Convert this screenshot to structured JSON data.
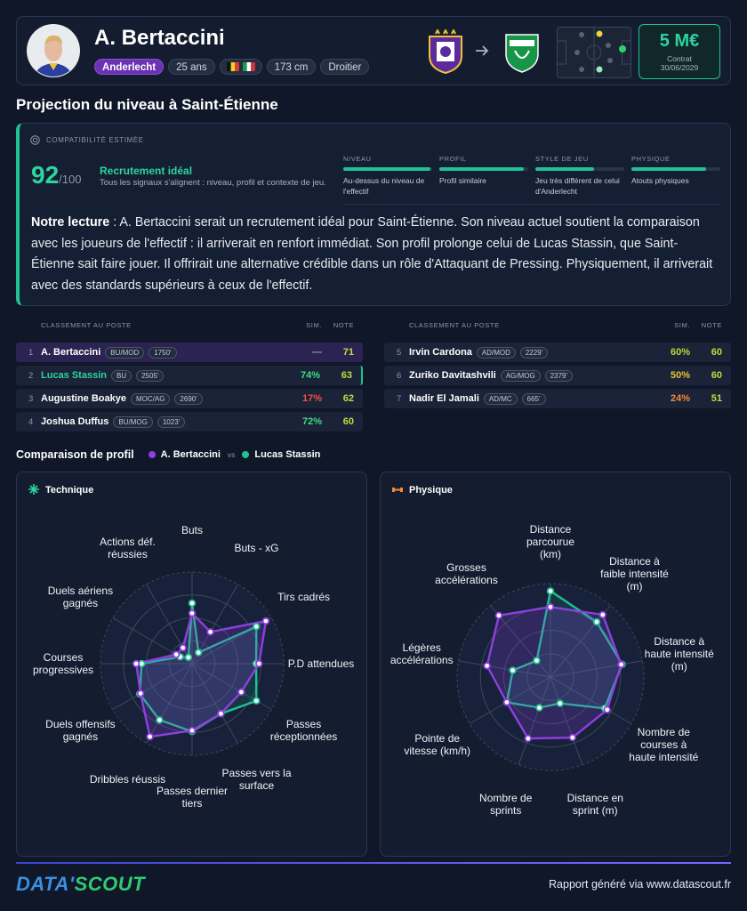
{
  "header": {
    "name": "A. Bertaccini",
    "club": "Anderlecht",
    "age": "25 ans",
    "height": "173 cm",
    "foot": "Droitier",
    "market_value": "5 M€",
    "contract_label": "Contrat",
    "contract_date": "30/06/2029"
  },
  "projection": {
    "title": "Projection du niveau à Saint-Étienne"
  },
  "compatibility": {
    "label": "COMPATIBILITÉ ESTIMÉE",
    "score": 92,
    "score_max": "/100",
    "verdict": "Recrutement idéal",
    "verdict_detail": "Tous les signaux s'alignent : niveau, profil et contexte de jeu.",
    "gauge_lim": [
      0,
      100
    ],
    "criteria": [
      {
        "label": "NIVEAU",
        "value": 98,
        "detail": "Au-dessus du niveau de l'effectif"
      },
      {
        "label": "PROFIL",
        "value": 95,
        "detail": "Profil similaire"
      },
      {
        "label": "STYLE DE JEU",
        "value": 66,
        "detail": "Jeu très différent de celui d'Anderlecht"
      },
      {
        "label": "PHYSIQUE",
        "value": 84,
        "detail": "Atouts physiques"
      }
    ],
    "reading_lead": "Notre lecture",
    "reading_text": ": A. Bertaccini serait un recrutement idéal pour Saint-Étienne. Son niveau actuel soutient la comparaison avec les joueurs de l'effectif : il arriverait en renfort immédiat. Son profil prolonge celui de Lucas Stassin, que Saint-Étienne sait faire jouer. Il offrirait une alternative crédible dans un rôle d'Attaquant de Pressing. Physiquement, il arriverait avec des standards supérieurs à ceux de l'effectif."
  },
  "rankings": [
    {
      "title": "CLASSEMENT AU POSTE",
      "sim": "SIM.",
      "note": "NOTE",
      "rows": [
        {
          "rank": 1,
          "name": "A. Bertaccini",
          "position": "BU/MOD",
          "minutes": "1750'",
          "similarity": "—",
          "note": 71
        },
        {
          "rank": 2,
          "name": "Lucas Stassin",
          "position": "BU",
          "minutes": "2505'",
          "similarity": "74%",
          "note": 63
        },
        {
          "rank": 3,
          "name": "Augustine Boakye",
          "position": "MOC/AG",
          "minutes": "2690'",
          "similarity": "17%",
          "note": 62
        },
        {
          "rank": 4,
          "name": "Joshua Duffus",
          "position": "BU/MOG",
          "minutes": "1023'",
          "similarity": "72%",
          "note": 60
        }
      ]
    },
    {
      "title": "CLASSEMENT AU POSTE",
      "sim": "SIM.",
      "note": "NOTE",
      "rows": [
        {
          "rank": 5,
          "name": "Irvin Cardona",
          "position": "AD/MOD",
          "minutes": "2229'",
          "similarity": "60%",
          "note": 60
        },
        {
          "rank": 6,
          "name": "Zuriko Davitashvili",
          "position": "AG/MOG",
          "minutes": "2379'",
          "similarity": "50%",
          "note": 60
        },
        {
          "rank": 7,
          "name": "Nadir El Jamali",
          "position": "AD/MC",
          "minutes": "665'",
          "similarity": "24%",
          "note": 51
        }
      ]
    }
  ],
  "comparison": {
    "title": "Comparaison de profil",
    "vs": "vs"
  },
  "chart_data": [
    {
      "type": "radar",
      "title": "Technique",
      "axes": [
        "Buts",
        "Buts - xG",
        "Tirs cadrés",
        "P.D attendues",
        "Passes réceptionnées",
        "Passes vers la surface",
        "Passes dernier tiers",
        "Dribbles réussis",
        "Duels offensifs gagnés",
        "Courses progressives",
        "Duels aériens gagnés",
        "Actions déf. réussies"
      ],
      "rlim": [
        0,
        100
      ],
      "rticks": [
        25,
        50,
        75,
        100
      ],
      "series": [
        {
          "name": "A. Bertaccini",
          "color": "#8e3fe0",
          "values": [
            55,
            40,
            93,
            73,
            62,
            63,
            73,
            92,
            65,
            61,
            20,
            20
          ]
        },
        {
          "name": "Lucas Stassin",
          "color": "#1fc292",
          "values": [
            66,
            14,
            81,
            70,
            81,
            63,
            74,
            71,
            66,
            55,
            15,
            8
          ]
        }
      ]
    },
    {
      "type": "radar",
      "title": "Physique",
      "axes": [
        "Distance parcourue (km)",
        "Distance à faible intensité (m)",
        "Distance à haute intensité (m)",
        "Nombre de courses à haute intensité",
        "Distance en sprint (m)",
        "Nombre de sprints",
        "Pointe de vitesse (km/h)",
        "Légères accélérations",
        "Grosses accélérations"
      ],
      "rlim": [
        0,
        100
      ],
      "rticks": [
        25,
        50,
        75,
        100
      ],
      "series": [
        {
          "color": "#8e3fe0",
          "values": [
            75,
            87,
            77,
            70,
            69,
            70,
            54,
            69,
            86
          ]
        },
        {
          "color": "#1fc292",
          "values": [
            92,
            77,
            78,
            67,
            30,
            35,
            54,
            41,
            23
          ]
        }
      ]
    }
  ],
  "footer": {
    "brand_a": "DATA'",
    "brand_b": "SCOUT",
    "credit": "Rapport généré via www.datascout.fr"
  }
}
